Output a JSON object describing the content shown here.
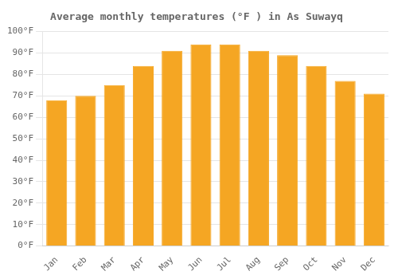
{
  "chart_data": {
    "type": "bar",
    "title": "Average monthly temperatures (°F ) in As Suwayq",
    "categories": [
      "Jan",
      "Feb",
      "Mar",
      "Apr",
      "May",
      "Jun",
      "Jul",
      "Aug",
      "Sep",
      "Oct",
      "Nov",
      "Dec"
    ],
    "values": [
      68,
      70,
      75,
      84,
      91,
      94,
      94,
      91,
      89,
      84,
      77,
      71
    ],
    "color": "#F5A623",
    "ylim": [
      0,
      100
    ],
    "yticks": [
      {
        "value": 0,
        "label": "0°F"
      },
      {
        "value": 10,
        "label": "10°F"
      },
      {
        "value": 20,
        "label": "20°F"
      },
      {
        "value": 30,
        "label": "30°F"
      },
      {
        "value": 40,
        "label": "40°F"
      },
      {
        "value": 50,
        "label": "50°F"
      },
      {
        "value": 60,
        "label": "60°F"
      },
      {
        "value": 70,
        "label": "70°F"
      },
      {
        "value": 80,
        "label": "80°F"
      },
      {
        "value": 90,
        "label": "90°F"
      },
      {
        "value": 100,
        "label": "100°F"
      }
    ],
    "grid": true
  }
}
